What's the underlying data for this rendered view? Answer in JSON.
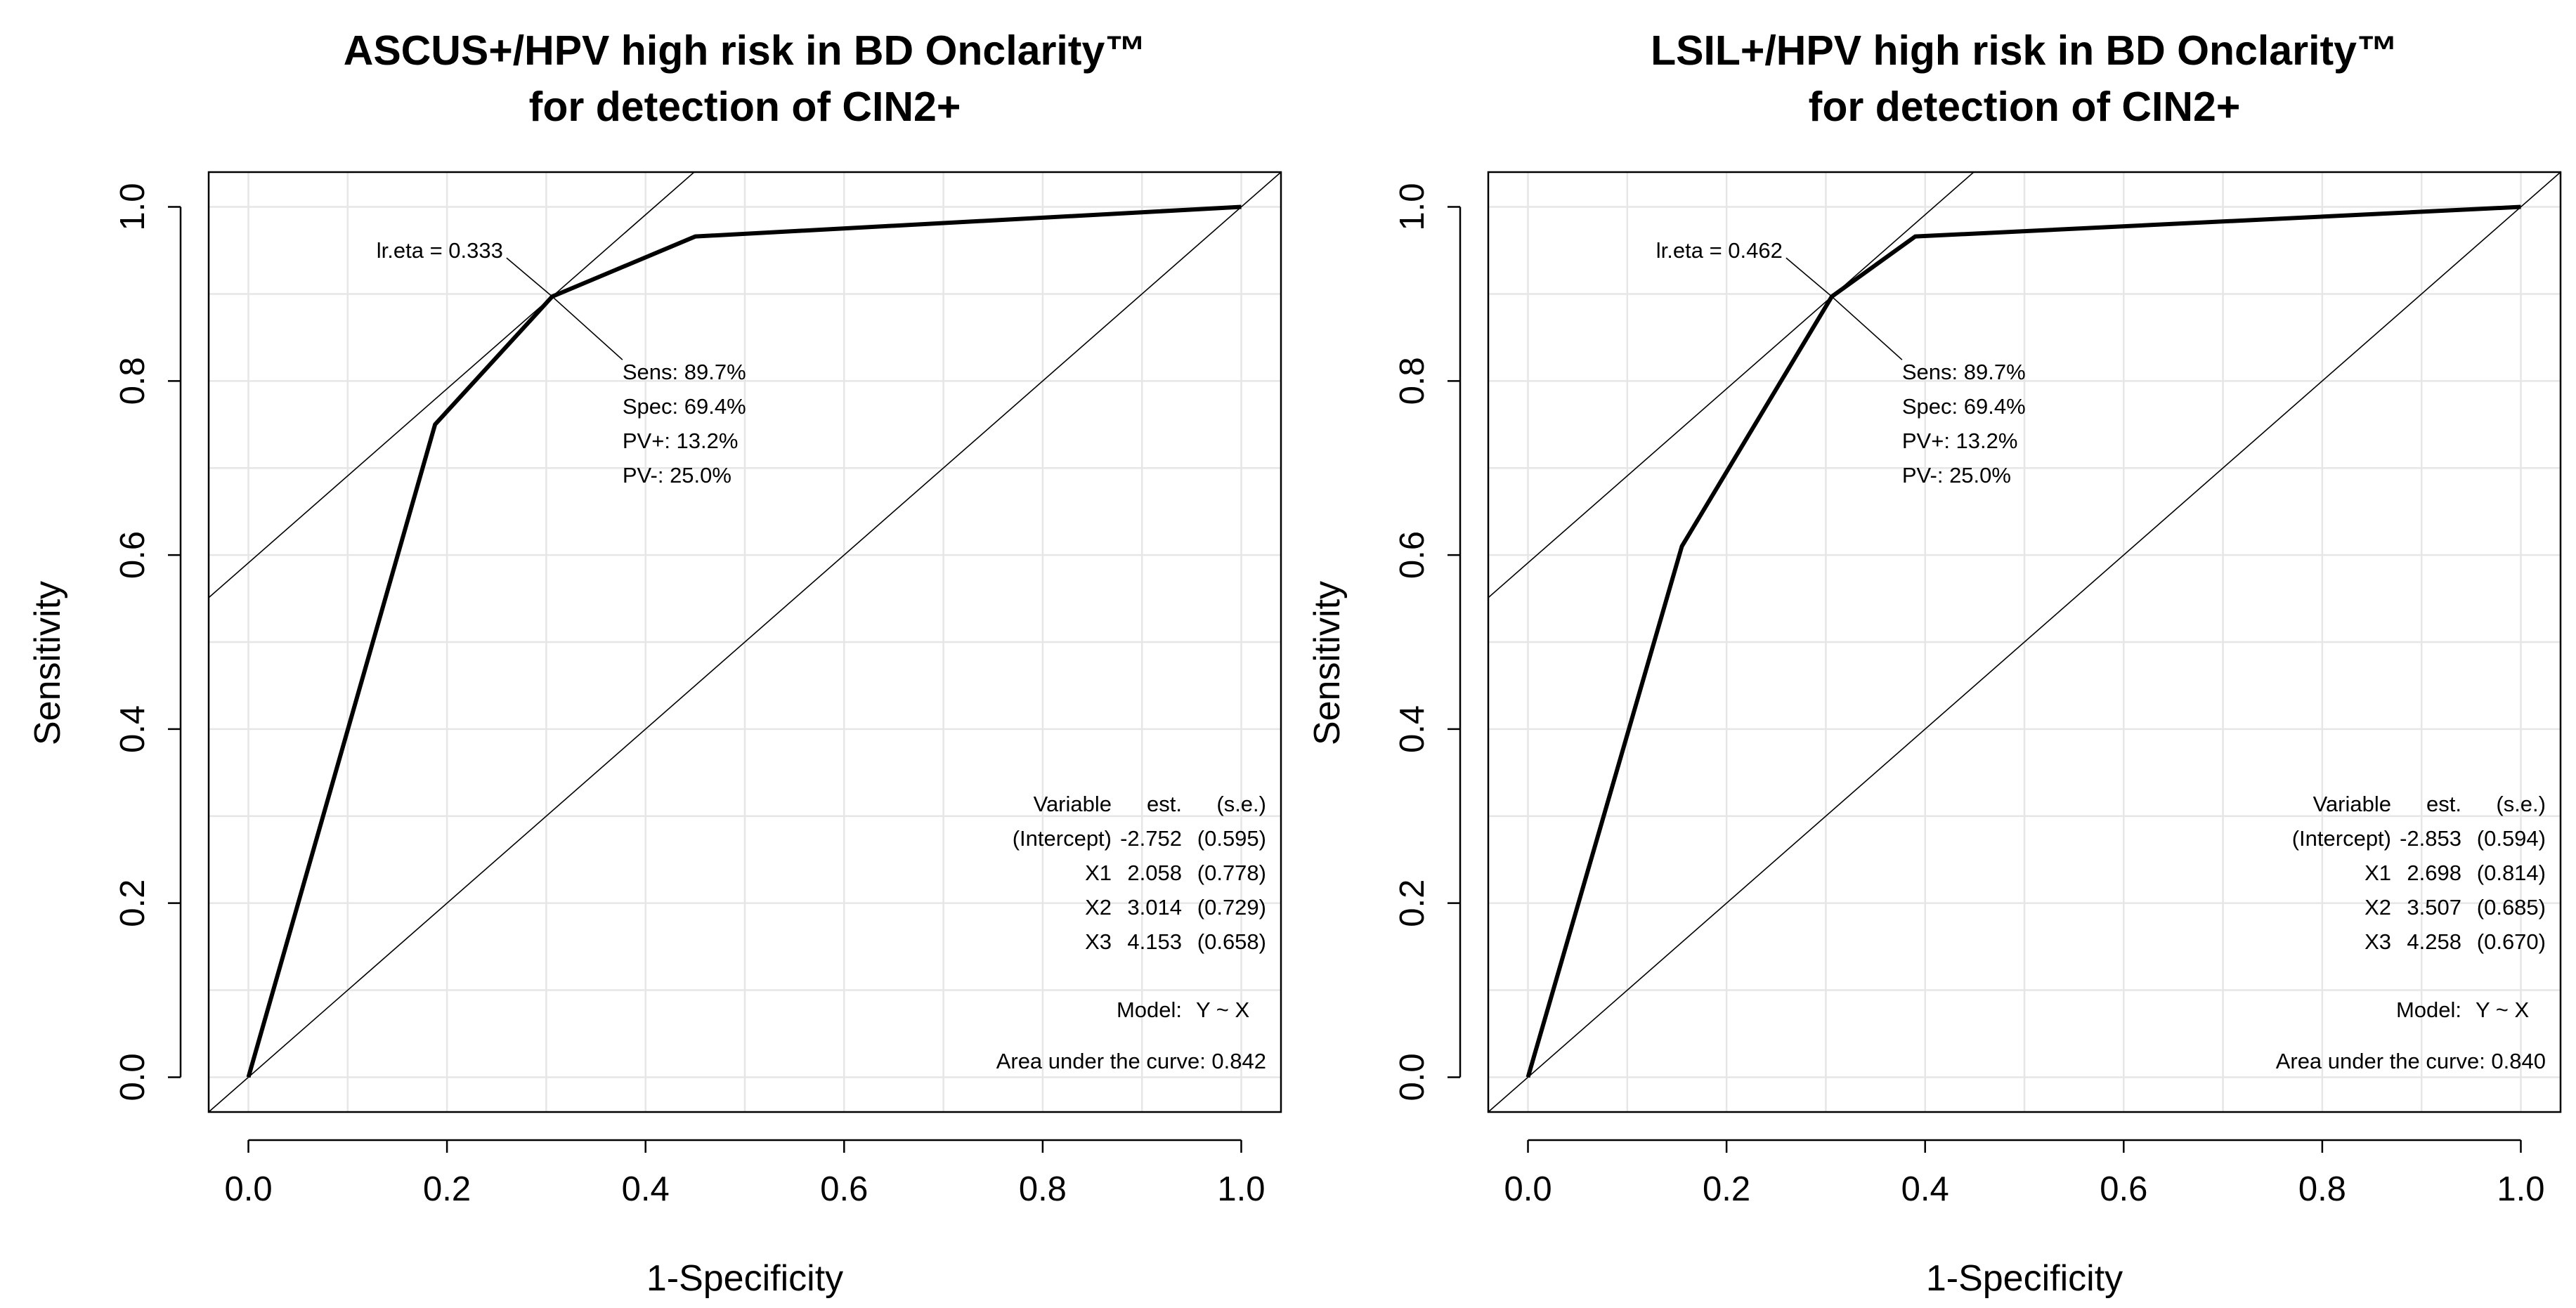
{
  "chart_data": [
    {
      "type": "line",
      "title_lines": [
        "ASCUS+/HPV high risk in BD Onclarity™",
        "for detection of CIN2+"
      ],
      "xlabel": "1-Specificity",
      "ylabel": "Sensitivity",
      "xlim": [
        -0.04,
        1.04
      ],
      "ylim": [
        -0.04,
        1.04
      ],
      "xticks": [
        0.0,
        0.2,
        0.4,
        0.6,
        0.8,
        1.0
      ],
      "xtick_labels": [
        "0.0",
        "0.2",
        "0.4",
        "0.6",
        "0.8",
        "1.0"
      ],
      "yticks": [
        0.0,
        0.2,
        0.4,
        0.6,
        0.8,
        1.0
      ],
      "ytick_labels": [
        "0.0",
        "0.2",
        "0.4",
        "0.6",
        "0.8",
        "1.0"
      ],
      "grid": true,
      "roc": {
        "x": [
          0.0,
          0.188,
          0.306,
          0.45,
          1.0
        ],
        "y": [
          0.0,
          0.75,
          0.897,
          0.966,
          1.0
        ]
      },
      "optimal_point": {
        "x": 0.306,
        "y": 0.897
      },
      "tangent_slope": 1.0,
      "tangent_intercept": 0.591,
      "cutoff_label": "lr.eta = 0.333",
      "stats": [
        "Sens: 89.7%",
        "Spec: 69.4%",
        "PV+: 13.2%",
        "PV-: 25.0%"
      ],
      "coef_table": {
        "header": [
          "Variable",
          "est.",
          "(s.e.)"
        ],
        "rows": [
          [
            "(Intercept)",
            "-2.752",
            "(0.595)"
          ],
          [
            "X1",
            "2.058",
            "(0.778)"
          ],
          [
            "X2",
            "3.014",
            "(0.729)"
          ],
          [
            "X3",
            "4.153",
            "(0.658)"
          ]
        ]
      },
      "model_label": "Model:",
      "model_formula": "Y ~ X",
      "auc_text": "Area under the curve: 0.842"
    },
    {
      "type": "line",
      "title_lines": [
        "LSIL+/HPV high risk in BD Onclarity™",
        "for detection of CIN2+"
      ],
      "xlabel": "1-Specificity",
      "ylabel": "Sensitivity",
      "xlim": [
        -0.04,
        1.04
      ],
      "ylim": [
        -0.04,
        1.04
      ],
      "xticks": [
        0.0,
        0.2,
        0.4,
        0.6,
        0.8,
        1.0
      ],
      "xtick_labels": [
        "0.0",
        "0.2",
        "0.4",
        "0.6",
        "0.8",
        "1.0"
      ],
      "yticks": [
        0.0,
        0.2,
        0.4,
        0.6,
        0.8,
        1.0
      ],
      "ytick_labels": [
        "0.0",
        "0.2",
        "0.4",
        "0.6",
        "0.8",
        "1.0"
      ],
      "grid": true,
      "roc": {
        "x": [
          0.0,
          0.155,
          0.306,
          0.39,
          1.0
        ],
        "y": [
          0.0,
          0.61,
          0.897,
          0.966,
          1.0
        ]
      },
      "optimal_point": {
        "x": 0.306,
        "y": 0.897
      },
      "tangent_slope": 1.0,
      "tangent_intercept": 0.591,
      "cutoff_label": "lr.eta = 0.462",
      "stats": [
        "Sens: 89.7%",
        "Spec: 69.4%",
        "PV+: 13.2%",
        "PV-: 25.0%"
      ],
      "coef_table": {
        "header": [
          "Variable",
          "est.",
          "(s.e.)"
        ],
        "rows": [
          [
            "(Intercept)",
            "-2.853",
            "(0.594)"
          ],
          [
            "X1",
            "2.698",
            "(0.814)"
          ],
          [
            "X2",
            "3.507",
            "(0.685)"
          ],
          [
            "X3",
            "4.258",
            "(0.670)"
          ]
        ]
      },
      "model_label": "Model:",
      "model_formula": "Y ~ X",
      "auc_text": "Area under the curve: 0.840"
    }
  ]
}
